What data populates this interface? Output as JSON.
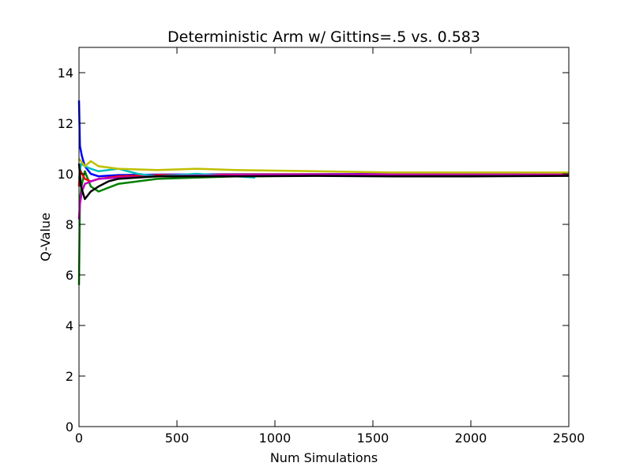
{
  "chart_data": {
    "type": "line",
    "title": "Deterministic Arm w/ Gittins=.5 vs. 0.583",
    "xlabel": "Num Simulations",
    "ylabel": "Q-Value",
    "xlim": [
      0,
      2500
    ],
    "ylim": [
      0,
      15
    ],
    "xticks": [
      "0",
      "500",
      "1000",
      "1500",
      "2000",
      "2500"
    ],
    "yticks": [
      "0",
      "2",
      "4",
      "6",
      "8",
      "10",
      "12",
      "14"
    ],
    "grid": false,
    "legend": "none",
    "series": [
      {
        "color": "#0000ff",
        "x": [
          0,
          5,
          15,
          30,
          60,
          100,
          200,
          400,
          800,
          1500,
          2500
        ],
        "y": [
          12.9,
          11.1,
          10.7,
          10.3,
          10.0,
          9.9,
          9.95,
          9.97,
          9.98,
          9.99,
          10.0
        ]
      },
      {
        "color": "#008000",
        "x": [
          0,
          5,
          15,
          30,
          60,
          100,
          200,
          400,
          800,
          1500,
          2500
        ],
        "y": [
          5.6,
          9.0,
          9.6,
          10.1,
          9.5,
          9.3,
          9.6,
          9.8,
          9.9,
          9.95,
          10.0
        ]
      },
      {
        "color": "#ff0000",
        "x": [
          0,
          5,
          15,
          30,
          60,
          100,
          200,
          400,
          800,
          1500,
          2500
        ],
        "y": [
          9.5,
          10.2,
          10.0,
          9.8,
          9.7,
          9.8,
          9.9,
          9.95,
          9.97,
          9.98,
          9.99
        ]
      },
      {
        "color": "#00bfbf",
        "x": [
          0,
          10,
          30,
          60,
          100,
          200,
          300,
          400,
          600,
          900
        ],
        "y": [
          9.8,
          10.4,
          10.3,
          10.2,
          10.1,
          10.2,
          10.0,
          9.9,
          10.0,
          9.85
        ]
      },
      {
        "color": "#bf00bf",
        "x": [
          0,
          5,
          15,
          30,
          60,
          100,
          200,
          400,
          800,
          1500,
          2500
        ],
        "y": [
          8.2,
          8.8,
          9.3,
          9.6,
          9.7,
          9.8,
          9.85,
          9.9,
          9.95,
          9.98,
          10.0
        ]
      },
      {
        "color": "#bfbf00",
        "x": [
          0,
          10,
          30,
          60,
          100,
          200,
          400,
          600,
          800,
          1200,
          1600,
          2000,
          2500
        ],
        "y": [
          10.6,
          10.5,
          10.3,
          10.5,
          10.3,
          10.2,
          10.15,
          10.2,
          10.15,
          10.1,
          10.05,
          10.05,
          10.05
        ]
      },
      {
        "color": "#000000",
        "x": [
          0,
          10,
          30,
          60,
          100,
          150,
          200,
          300,
          400,
          800,
          1200,
          1600,
          2000,
          2500
        ],
        "y": [
          10.4,
          9.5,
          9.0,
          9.3,
          9.5,
          9.7,
          9.8,
          9.85,
          9.9,
          9.9,
          9.92,
          9.9,
          9.9,
          9.92
        ]
      }
    ]
  }
}
